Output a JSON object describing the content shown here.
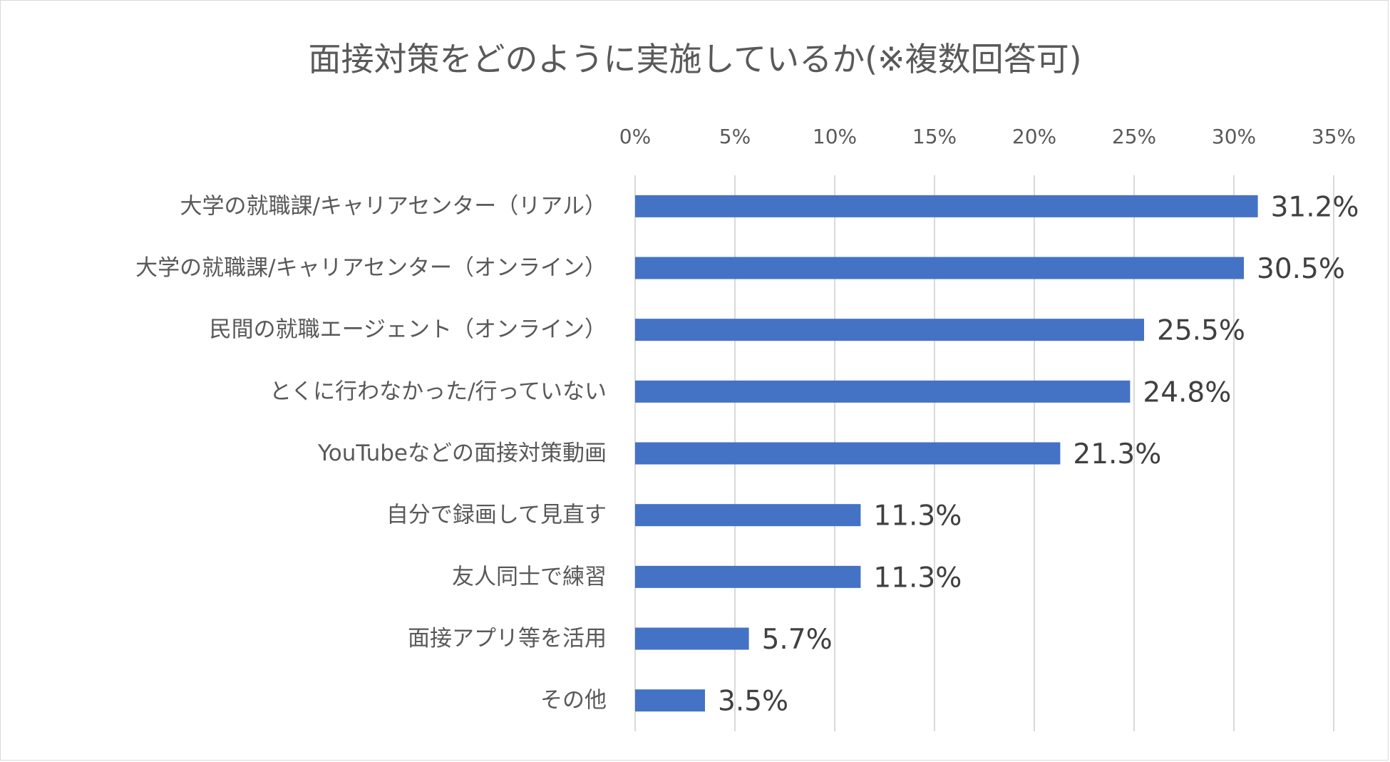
{
  "chart_data": {
    "type": "bar",
    "orientation": "horizontal",
    "title": "面接対策をどのように実施しているか(※複数回答可)",
    "xlabel": "",
    "ylabel": "",
    "xlim": [
      0,
      35
    ],
    "ticks": [
      0,
      5,
      10,
      15,
      20,
      25,
      30,
      35
    ],
    "tick_labels": [
      "0%",
      "5%",
      "10%",
      "15%",
      "20%",
      "25%",
      "30%",
      "35%"
    ],
    "axis_position": "top",
    "grid": true,
    "legend": "none",
    "bar_color": "#4472c4",
    "categories": [
      "大学の就職課/キャリアセンター（リアル）",
      "大学の就職課/キャリアセンター（オンライン）",
      "民間の就職エージェント（オンライン）",
      "とくに行わなかった/行っていない",
      "YouTubeなどの面接対策動画",
      "自分で録画して見直す",
      "友人同士で練習",
      "面接アプリ等を活用",
      "その他"
    ],
    "values": [
      31.2,
      30.5,
      25.5,
      24.8,
      21.3,
      11.3,
      11.3,
      5.7,
      3.5
    ],
    "value_labels": [
      "31.2%",
      "30.5%",
      "25.5%",
      "24.8%",
      "21.3%",
      "11.3%",
      "11.3%",
      "5.7%",
      "3.5%"
    ]
  }
}
